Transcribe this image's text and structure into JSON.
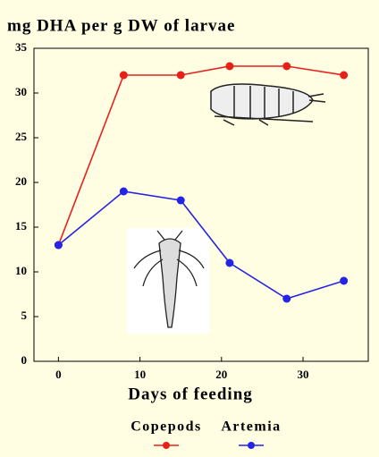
{
  "chart_data": {
    "type": "line",
    "title": "mg DHA  per g DW of larvae",
    "x_label": "Days of feeding",
    "x": [
      0,
      8,
      15,
      21,
      28,
      35
    ],
    "series": [
      {
        "name": "Copepods",
        "color": "#e8201c",
        "values": [
          13,
          32,
          32,
          33,
          33,
          32
        ]
      },
      {
        "name": "Artemia",
        "color": "#2424e6",
        "values": [
          13,
          19,
          18,
          11,
          7,
          9
        ]
      }
    ],
    "xlim": [
      -3,
      38
    ],
    "xticks": [
      0,
      10,
      20,
      30
    ],
    "ylim": [
      0,
      35
    ],
    "yticks": [
      0,
      5,
      10,
      15,
      20,
      25,
      30,
      35
    ]
  }
}
